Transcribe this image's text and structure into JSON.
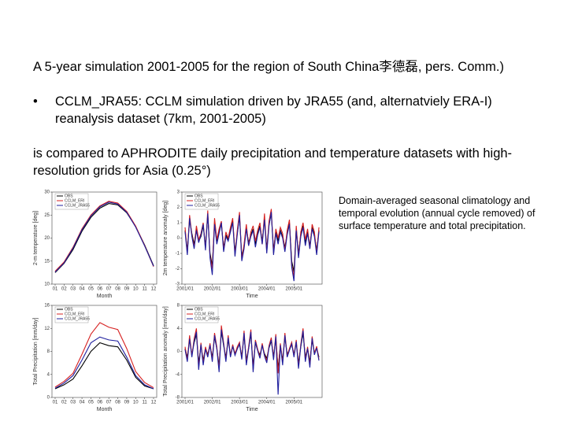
{
  "slide": {
    "intro": "A 5-year simulation 2001-2005 for the region of South China李德磊, pers. Comm.)",
    "bullet": "CCLM_JRA55: CCLM simulation driven by JRA55 (and, alternatviely ERA-I) reanalysis dataset (7km, 2001-2005)",
    "comparison": "is compared to APHRODITE daily precipitation and temperature datasets with high-resolution grids for Asia (0.25°)",
    "caption": "Domain-averaged seasonal climatology and temporal evolution (annual cycle removed) of surface temperature and total precipitation."
  },
  "chart_data": [
    {
      "type": "line",
      "xlabel": "Month",
      "ylabel": "2-m temperature [deg]",
      "categories": [
        "01",
        "02",
        "03",
        "04",
        "05",
        "06",
        "07",
        "08",
        "09",
        "10",
        "11",
        "12"
      ],
      "ylim": [
        10,
        30
      ],
      "yticks": [
        10,
        15,
        20,
        25,
        30
      ],
      "legend": "upper left",
      "series": [
        {
          "name": "OBS",
          "color": "#000000",
          "values": [
            12.5,
            14.5,
            17.5,
            21.5,
            24.5,
            26.5,
            27.5,
            27.2,
            25.5,
            22.5,
            18.5,
            14.0
          ]
        },
        {
          "name": "CCLM_ERI",
          "color": "#d62020",
          "values": [
            12.8,
            14.8,
            18.0,
            22.0,
            25.0,
            27.0,
            28.0,
            27.6,
            25.8,
            22.6,
            18.4,
            13.8
          ]
        },
        {
          "name": "CCLM_JRA55",
          "color": "#1f1f9e",
          "values": [
            12.6,
            14.6,
            17.8,
            21.8,
            24.8,
            26.8,
            27.8,
            27.4,
            25.6,
            22.4,
            18.3,
            13.9
          ]
        }
      ]
    },
    {
      "type": "line",
      "xlabel": "Time",
      "ylabel": "2m temperature anomaly [deg]",
      "categories": [
        "2001/01",
        null,
        null,
        null,
        null,
        null,
        null,
        null,
        null,
        null,
        null,
        null,
        "2002/01",
        null,
        null,
        null,
        null,
        null,
        null,
        null,
        null,
        null,
        null,
        null,
        "2003/01",
        null,
        null,
        null,
        null,
        null,
        null,
        null,
        null,
        null,
        null,
        null,
        "2004/01",
        null,
        null,
        null,
        null,
        null,
        null,
        null,
        null,
        null,
        null,
        null,
        "2005/01",
        null,
        null,
        null,
        null,
        null,
        null,
        null,
        null,
        null,
        null,
        null
      ],
      "ylim": [
        -3,
        3
      ],
      "yticks": [
        -3,
        -2,
        -1,
        0,
        1,
        2,
        3
      ],
      "legend": "upper left",
      "series": [
        {
          "name": "OBS",
          "color": "#000000",
          "values": [
            0.5,
            -0.8,
            1.2,
            0.3,
            -0.4,
            0.6,
            -0.2,
            0.1,
            0.8,
            -0.5,
            1.5,
            -1.0,
            -1.8,
            1.0,
            -0.3,
            0.4,
            0.9,
            -0.6,
            0.2,
            -0.1,
            0.5,
            1.1,
            -0.9,
            0.3,
            1.4,
            -1.2,
            -0.5,
            0.7,
            -0.3,
            0.2,
            0.6,
            -0.4,
            0.3,
            0.8,
            -0.2,
            1.3,
            -0.7,
            0.9,
            1.6,
            -0.8,
            0.4,
            -0.2,
            0.5,
            0.1,
            -0.6,
            0.3,
            1.0,
            -1.5,
            -2.2,
            0.6,
            -1.0,
            0.2,
            0.8,
            -0.3,
            0.4,
            -0.5,
            0.7,
            0.2,
            -0.8,
            0.5
          ]
        },
        {
          "name": "CCLM_ERI",
          "color": "#d62020",
          "values": [
            0.7,
            -1.0,
            1.5,
            0.2,
            -0.6,
            0.8,
            -0.1,
            0.3,
            1.0,
            -0.7,
            1.8,
            -1.2,
            -2.0,
            1.3,
            -0.1,
            0.6,
            1.1,
            -0.8,
            0.4,
            0.0,
            0.7,
            1.3,
            -1.1,
            0.5,
            1.7,
            -1.4,
            -0.4,
            0.9,
            -0.5,
            0.4,
            0.8,
            -0.2,
            0.5,
            1.0,
            -0.4,
            1.6,
            -0.9,
            1.1,
            1.9,
            -1.0,
            0.6,
            0.0,
            0.7,
            0.3,
            -0.8,
            0.5,
            1.2,
            -1.8,
            -2.5,
            0.8,
            -1.2,
            0.4,
            1.0,
            -0.1,
            0.6,
            -0.7,
            0.9,
            0.4,
            -1.0,
            0.7
          ]
        },
        {
          "name": "CCLM_JRA55",
          "color": "#1f1f9e",
          "values": [
            0.4,
            -1.1,
            1.3,
            0.1,
            -0.7,
            0.5,
            -0.3,
            0.2,
            0.9,
            -0.8,
            1.6,
            -1.3,
            -2.4,
            0.9,
            -0.4,
            0.3,
            1.0,
            -0.9,
            0.1,
            -0.2,
            0.4,
            1.0,
            -1.2,
            0.2,
            1.5,
            -1.5,
            -0.7,
            0.6,
            -0.5,
            0.1,
            0.5,
            -0.6,
            0.2,
            0.7,
            -0.4,
            1.2,
            -1.0,
            0.8,
            1.7,
            -1.1,
            0.3,
            -0.4,
            0.4,
            0.0,
            -0.9,
            0.2,
            0.9,
            -1.9,
            -2.8,
            0.5,
            -1.3,
            0.1,
            0.7,
            -0.5,
            0.3,
            -0.7,
            0.6,
            0.1,
            -1.1,
            0.4
          ]
        }
      ]
    },
    {
      "type": "line",
      "xlabel": "Month",
      "ylabel": "Total Precipitation [mm/day]",
      "categories": [
        "01",
        "02",
        "03",
        "04",
        "05",
        "06",
        "07",
        "08",
        "09",
        "10",
        "11",
        "12"
      ],
      "ylim": [
        0,
        16
      ],
      "yticks": [
        0,
        4,
        8,
        12,
        16
      ],
      "legend": "upper left",
      "series": [
        {
          "name": "OBS",
          "color": "#000000",
          "values": [
            1.5,
            2.2,
            3.2,
            5.5,
            8.0,
            9.5,
            9.0,
            8.8,
            6.5,
            3.5,
            2.0,
            1.5
          ]
        },
        {
          "name": "CCLM_ERI",
          "color": "#d62020",
          "values": [
            1.8,
            2.8,
            4.2,
            7.5,
            11.0,
            13.0,
            12.2,
            11.8,
            8.5,
            4.5,
            2.6,
            1.7
          ]
        },
        {
          "name": "CCLM_JRA55",
          "color": "#1f1f9e",
          "values": [
            1.6,
            2.5,
            3.8,
            6.5,
            9.5,
            10.5,
            10.0,
            9.8,
            7.0,
            3.8,
            2.2,
            1.5
          ]
        }
      ]
    },
    {
      "type": "line",
      "xlabel": "Time",
      "ylabel": "Total Precipitation anomaly [mm/day]",
      "categories": [
        "2001/01",
        null,
        null,
        null,
        null,
        null,
        null,
        null,
        null,
        null,
        null,
        null,
        "2002/01",
        null,
        null,
        null,
        null,
        null,
        null,
        null,
        null,
        null,
        null,
        null,
        "2003/01",
        null,
        null,
        null,
        null,
        null,
        null,
        null,
        null,
        null,
        null,
        null,
        "2004/01",
        null,
        null,
        null,
        null,
        null,
        null,
        null,
        null,
        null,
        null,
        null,
        "2005/01",
        null,
        null,
        null,
        null,
        null,
        null,
        null,
        null,
        null,
        null,
        null
      ],
      "ylim": [
        -8,
        8
      ],
      "yticks": [
        -8,
        -4,
        0,
        4,
        8
      ],
      "legend": "upper left",
      "series": [
        {
          "name": "OBS",
          "color": "#000000",
          "values": [
            0.5,
            -1.0,
            2.0,
            -0.5,
            1.5,
            3.0,
            -2.0,
            1.0,
            -1.5,
            0.5,
            -0.5,
            1.0,
            -1.0,
            2.5,
            0.5,
            -2.5,
            3.5,
            1.0,
            -1.0,
            2.0,
            -0.5,
            0.8,
            -0.3,
            0.5,
            1.2,
            -0.8,
            2.8,
            -1.5,
            0.5,
            3.0,
            -2.5,
            1.5,
            0.2,
            -0.6,
            1.0,
            -0.4,
            -1.2,
            0.6,
            1.8,
            -0.8,
            2.2,
            -3.0,
            1.0,
            -1.5,
            2.5,
            -0.5,
            0.3,
            1.2,
            -0.5,
            1.5,
            -2.0,
            0.8,
            3.2,
            -1.0,
            0.5,
            -1.8,
            2.0,
            -0.2,
            0.6,
            -1.0
          ]
        },
        {
          "name": "CCLM_ERI",
          "color": "#d62020",
          "values": [
            0.8,
            -1.5,
            2.8,
            -0.8,
            2.2,
            4.0,
            -2.8,
            1.5,
            -2.0,
            0.8,
            -0.8,
            1.4,
            -1.5,
            3.2,
            0.8,
            -3.2,
            4.5,
            1.5,
            -1.5,
            2.8,
            -0.8,
            1.2,
            -0.5,
            0.8,
            1.6,
            -1.2,
            3.6,
            -2.0,
            0.8,
            3.8,
            -3.2,
            2.0,
            0.4,
            -1.0,
            1.4,
            -0.6,
            -1.6,
            1.0,
            2.4,
            -1.2,
            3.0,
            -3.8,
            1.4,
            -2.0,
            3.2,
            -0.8,
            0.5,
            1.6,
            -0.8,
            2.0,
            -2.6,
            1.2,
            4.0,
            -1.5,
            0.8,
            -2.4,
            2.6,
            -0.4,
            0.9,
            -1.4
          ]
        },
        {
          "name": "CCLM_JRA55",
          "color": "#1f1f9e",
          "values": [
            0.3,
            -1.8,
            2.2,
            -1.0,
            1.8,
            3.4,
            -3.2,
            1.2,
            -2.4,
            0.4,
            -1.0,
            1.1,
            -1.8,
            2.8,
            0.4,
            -3.6,
            3.8,
            1.2,
            -1.8,
            2.4,
            -1.0,
            0.9,
            -0.7,
            0.4,
            1.3,
            -1.4,
            3.2,
            -2.4,
            0.4,
            3.4,
            -3.6,
            1.7,
            0.1,
            -1.2,
            1.1,
            -0.8,
            -2.0,
            0.7,
            2.0,
            -1.5,
            2.6,
            -7.5,
            1.1,
            -2.4,
            2.8,
            -1.0,
            0.2,
            1.3,
            -1.0,
            1.7,
            -3.0,
            0.9,
            3.6,
            -1.8,
            0.5,
            -2.8,
            2.3,
            -0.6,
            0.6,
            -1.6
          ]
        }
      ]
    }
  ]
}
